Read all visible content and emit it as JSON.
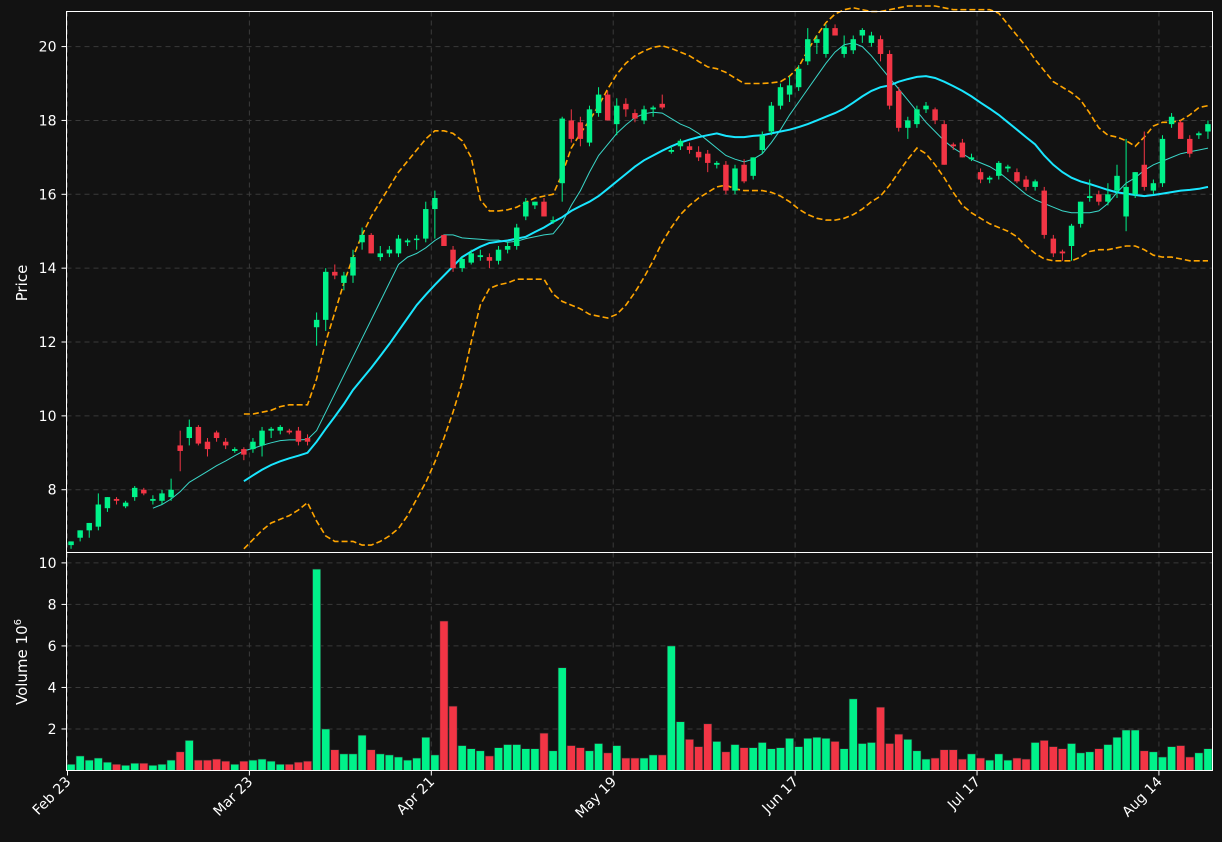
{
  "colors": {
    "background": "#121212",
    "up": "#00f28a",
    "down": "#f23545",
    "ma_fast": "#3ad6c8",
    "ma_slow": "#19e6ff",
    "bands": "#ffa500",
    "grid": "#3a3a3a",
    "axes": "#ffffff"
  },
  "chart_data": {
    "type": "candlestick",
    "price_ylabel": "Price",
    "volume_ylabel": "Volume  10^6",
    "volume_ylabel_base": "Volume  10",
    "volume_ylabel_exp": "6",
    "price_ylim": [
      6.3,
      20.95
    ],
    "price_yticks": [
      8,
      10,
      12,
      14,
      16,
      18,
      20
    ],
    "volume_ylim": [
      0,
      10.5
    ],
    "volume_yticks": [
      2,
      4,
      6,
      8,
      10
    ],
    "grid": true,
    "xticks": [
      {
        "label": "Feb 23",
        "index": 0
      },
      {
        "label": "Mar 23",
        "index": 20
      },
      {
        "label": "Apr 21",
        "index": 40
      },
      {
        "label": "May 19",
        "index": 60
      },
      {
        "label": "Jun 17",
        "index": 80
      },
      {
        "label": "Jul 17",
        "index": 100
      },
      {
        "label": "Aug 14",
        "index": 120
      }
    ],
    "ohlc": [
      [
        6.5,
        6.6,
        6.4,
        6.6
      ],
      [
        6.7,
        6.9,
        6.6,
        6.9
      ],
      [
        6.9,
        7.1,
        6.7,
        7.1
      ],
      [
        7.0,
        7.9,
        6.9,
        7.6
      ],
      [
        7.5,
        7.8,
        7.4,
        7.8
      ],
      [
        7.75,
        7.8,
        7.6,
        7.7
      ],
      [
        7.55,
        7.7,
        7.5,
        7.65
      ],
      [
        7.8,
        8.1,
        7.7,
        8.05
      ],
      [
        8.0,
        8.05,
        7.85,
        7.9
      ],
      [
        7.7,
        7.85,
        7.6,
        7.75
      ],
      [
        7.7,
        8.0,
        7.6,
        7.9
      ],
      [
        7.8,
        8.3,
        7.7,
        8.0
      ],
      [
        9.2,
        9.6,
        8.5,
        9.05
      ],
      [
        9.4,
        9.9,
        9.2,
        9.7
      ],
      [
        9.7,
        9.75,
        9.2,
        9.25
      ],
      [
        9.3,
        9.4,
        8.9,
        9.1
      ],
      [
        9.55,
        9.6,
        9.3,
        9.4
      ],
      [
        9.3,
        9.4,
        9.1,
        9.2
      ],
      [
        9.05,
        9.15,
        9.0,
        9.1
      ],
      [
        9.1,
        9.15,
        8.8,
        8.95
      ],
      [
        9.1,
        9.4,
        9.0,
        9.3
      ],
      [
        9.2,
        9.7,
        8.9,
        9.6
      ],
      [
        9.6,
        9.7,
        9.4,
        9.65
      ],
      [
        9.6,
        9.75,
        9.5,
        9.7
      ],
      [
        9.6,
        9.65,
        9.5,
        9.55
      ],
      [
        9.6,
        9.7,
        9.2,
        9.3
      ],
      [
        9.4,
        9.5,
        9.2,
        9.3
      ],
      [
        12.4,
        12.8,
        11.9,
        12.6
      ],
      [
        12.6,
        14.0,
        12.3,
        13.9
      ],
      [
        13.9,
        14.1,
        13.7,
        13.8
      ],
      [
        13.6,
        13.9,
        13.4,
        13.8
      ],
      [
        13.8,
        14.5,
        13.6,
        14.3
      ],
      [
        14.7,
        15.1,
        14.5,
        14.9
      ],
      [
        14.9,
        14.95,
        14.4,
        14.4
      ],
      [
        14.3,
        14.6,
        14.2,
        14.4
      ],
      [
        14.4,
        14.6,
        14.3,
        14.5
      ],
      [
        14.4,
        14.9,
        14.3,
        14.8
      ],
      [
        14.7,
        14.8,
        14.6,
        14.75
      ],
      [
        14.8,
        14.9,
        14.5,
        14.8
      ],
      [
        14.8,
        15.8,
        14.7,
        15.6
      ],
      [
        15.6,
        16.1,
        14.8,
        15.9
      ],
      [
        14.9,
        14.9,
        14.6,
        14.6
      ],
      [
        14.5,
        14.6,
        13.9,
        14.0
      ],
      [
        14.0,
        14.3,
        13.9,
        14.25
      ],
      [
        14.15,
        14.5,
        14.1,
        14.4
      ],
      [
        14.3,
        14.5,
        14.2,
        14.35
      ],
      [
        14.3,
        14.4,
        14.0,
        14.2
      ],
      [
        14.2,
        14.6,
        14.1,
        14.5
      ],
      [
        14.5,
        14.7,
        14.4,
        14.6
      ],
      [
        14.6,
        15.2,
        14.5,
        15.1
      ],
      [
        15.4,
        15.9,
        15.3,
        15.8
      ],
      [
        15.7,
        15.8,
        15.6,
        15.8
      ],
      [
        15.8,
        15.9,
        15.4,
        15.4
      ],
      [
        15.3,
        15.4,
        15.2,
        15.3
      ],
      [
        16.3,
        18.1,
        15.8,
        18.05
      ],
      [
        18.0,
        18.3,
        17.4,
        17.5
      ],
      [
        17.95,
        18.1,
        17.3,
        17.5
      ],
      [
        17.4,
        18.4,
        17.3,
        18.3
      ],
      [
        18.2,
        18.9,
        18.1,
        18.7
      ],
      [
        18.7,
        18.8,
        18.0,
        18.0
      ],
      [
        17.9,
        18.6,
        17.6,
        18.4
      ],
      [
        18.45,
        18.6,
        18.1,
        18.3
      ],
      [
        18.2,
        18.3,
        17.95,
        18.05
      ],
      [
        18.0,
        18.4,
        17.9,
        18.3
      ],
      [
        18.3,
        18.4,
        18.1,
        18.35
      ],
      [
        18.45,
        18.7,
        18.3,
        18.35
      ],
      [
        17.15,
        17.3,
        17.1,
        17.2
      ],
      [
        17.3,
        17.5,
        17.2,
        17.45
      ],
      [
        17.3,
        17.4,
        17.1,
        17.2
      ],
      [
        17.15,
        17.3,
        16.9,
        17.0
      ],
      [
        17.1,
        17.2,
        16.6,
        16.85
      ],
      [
        16.8,
        16.9,
        16.7,
        16.85
      ],
      [
        16.8,
        16.9,
        16.0,
        16.1
      ],
      [
        16.1,
        16.8,
        16.0,
        16.7
      ],
      [
        16.8,
        16.95,
        16.3,
        16.35
      ],
      [
        16.5,
        17.0,
        16.4,
        17.0
      ],
      [
        17.2,
        17.7,
        17.1,
        17.6
      ],
      [
        17.7,
        18.5,
        17.6,
        18.4
      ],
      [
        18.4,
        19.0,
        18.3,
        18.9
      ],
      [
        18.7,
        19.2,
        18.5,
        18.95
      ],
      [
        18.9,
        19.5,
        18.8,
        19.4
      ],
      [
        19.6,
        20.5,
        19.5,
        20.2
      ],
      [
        20.1,
        20.3,
        19.8,
        20.2
      ],
      [
        19.8,
        20.6,
        19.7,
        20.5
      ],
      [
        20.5,
        20.6,
        20.3,
        20.3
      ],
      [
        19.8,
        20.3,
        19.7,
        20.0
      ],
      [
        19.9,
        20.3,
        19.8,
        20.2
      ],
      [
        20.3,
        20.5,
        20.1,
        20.45
      ],
      [
        20.1,
        20.4,
        20.0,
        20.3
      ],
      [
        20.2,
        20.3,
        19.6,
        19.8
      ],
      [
        19.8,
        19.9,
        18.3,
        18.4
      ],
      [
        18.8,
        18.9,
        17.7,
        17.8
      ],
      [
        17.8,
        18.1,
        17.5,
        18.0
      ],
      [
        17.9,
        18.4,
        17.8,
        18.3
      ],
      [
        18.3,
        18.5,
        18.2,
        18.4
      ],
      [
        18.3,
        18.35,
        17.9,
        18.0
      ],
      [
        17.9,
        18.0,
        16.8,
        16.8
      ],
      [
        17.35,
        17.4,
        17.2,
        17.3
      ],
      [
        17.4,
        17.5,
        17.0,
        17.0
      ],
      [
        16.95,
        17.1,
        16.9,
        17.0
      ],
      [
        16.6,
        16.7,
        16.3,
        16.4
      ],
      [
        16.4,
        16.5,
        16.3,
        16.45
      ],
      [
        16.5,
        16.9,
        16.4,
        16.85
      ],
      [
        16.7,
        16.8,
        16.6,
        16.75
      ],
      [
        16.6,
        16.7,
        16.3,
        16.35
      ],
      [
        16.4,
        16.5,
        16.1,
        16.2
      ],
      [
        16.2,
        16.4,
        16.1,
        16.35
      ],
      [
        16.1,
        16.2,
        14.8,
        14.9
      ],
      [
        14.8,
        14.9,
        14.3,
        14.4
      ],
      [
        14.45,
        14.5,
        14.2,
        14.4
      ],
      [
        14.6,
        15.2,
        14.2,
        15.15
      ],
      [
        15.2,
        15.8,
        15.1,
        15.8
      ],
      [
        15.9,
        16.4,
        15.8,
        15.95
      ],
      [
        16.0,
        16.1,
        15.7,
        15.8
      ],
      [
        15.8,
        16.3,
        15.7,
        16.0
      ],
      [
        16.1,
        16.8,
        15.9,
        16.5
      ],
      [
        15.4,
        17.5,
        15.0,
        16.2
      ],
      [
        16.0,
        16.6,
        15.9,
        16.6
      ],
      [
        16.8,
        17.7,
        16.1,
        16.2
      ],
      [
        16.1,
        16.4,
        16.0,
        16.3
      ],
      [
        16.3,
        17.6,
        16.2,
        17.5
      ],
      [
        17.9,
        18.2,
        17.8,
        18.1
      ],
      [
        17.95,
        18.0,
        17.5,
        17.5
      ],
      [
        17.5,
        17.6,
        17.0,
        17.1
      ],
      [
        17.6,
        17.7,
        17.5,
        17.65
      ],
      [
        17.7,
        18.0,
        17.5,
        17.9
      ]
    ],
    "volume": [
      0.3,
      0.7,
      0.5,
      0.6,
      0.4,
      0.3,
      0.25,
      0.35,
      0.35,
      0.25,
      0.3,
      0.5,
      0.9,
      1.45,
      0.5,
      0.5,
      0.55,
      0.45,
      0.3,
      0.45,
      0.5,
      0.55,
      0.45,
      0.3,
      0.3,
      0.4,
      0.45,
      9.7,
      2.0,
      1.0,
      0.8,
      0.8,
      1.7,
      1.0,
      0.8,
      0.75,
      0.65,
      0.5,
      0.6,
      1.6,
      0.75,
      7.2,
      3.1,
      1.2,
      1.05,
      0.95,
      0.7,
      1.1,
      1.25,
      1.25,
      1.05,
      1.05,
      1.8,
      0.95,
      4.95,
      1.2,
      1.1,
      0.95,
      1.3,
      0.85,
      1.2,
      0.6,
      0.6,
      0.6,
      0.75,
      0.75,
      6.0,
      2.35,
      1.5,
      1.15,
      2.25,
      1.4,
      0.9,
      1.25,
      1.1,
      1.1,
      1.35,
      1.05,
      1.1,
      1.55,
      1.15,
      1.55,
      1.6,
      1.55,
      1.4,
      1.05,
      3.45,
      1.3,
      1.35,
      3.05,
      1.3,
      1.75,
      1.5,
      0.95,
      0.55,
      0.6,
      1.0,
      1.0,
      0.55,
      0.8,
      0.6,
      0.5,
      0.8,
      0.5,
      0.6,
      0.55,
      1.35,
      1.45,
      1.15,
      1.05,
      1.3,
      0.85,
      0.9,
      1.05,
      1.25,
      1.6,
      1.95,
      1.95,
      0.95,
      0.9,
      0.65,
      1.15,
      1.2,
      0.65,
      0.85,
      1.05
    ],
    "ma_fast": [
      null,
      null,
      null,
      null,
      null,
      null,
      null,
      null,
      null,
      7.5,
      7.6,
      7.75,
      7.95,
      8.2,
      8.35,
      8.5,
      8.65,
      8.78,
      8.92,
      9.05,
      9.12,
      9.2,
      9.27,
      9.33,
      9.35,
      9.35,
      9.36,
      9.6,
      10.1,
      10.6,
      11.1,
      11.6,
      12.1,
      12.6,
      13.1,
      13.6,
      14.1,
      14.3,
      14.4,
      14.55,
      14.75,
      14.9,
      14.9,
      14.82,
      14.8,
      14.78,
      14.76,
      14.76,
      14.7,
      14.73,
      14.8,
      14.85,
      14.9,
      14.93,
      15.23,
      15.7,
      16.1,
      16.6,
      17.05,
      17.35,
      17.65,
      17.88,
      18.08,
      18.18,
      18.22,
      18.2,
      18.05,
      17.9,
      17.8,
      17.65,
      17.45,
      17.25,
      17.05,
      16.95,
      16.88,
      16.95,
      17.1,
      17.4,
      17.75,
      18.15,
      18.5,
      18.85,
      19.2,
      19.55,
      19.85,
      20.05,
      20.1,
      20.0,
      19.75,
      19.45,
      19.15,
      18.85,
      18.55,
      18.25,
      17.95,
      17.7,
      17.45,
      17.25,
      17.1,
      16.95,
      16.85,
      16.75,
      16.6,
      16.4,
      16.2,
      16.0,
      15.85,
      15.75,
      15.65,
      15.55,
      15.5,
      15.5,
      15.5,
      15.55,
      15.75,
      16.05,
      16.3,
      16.45,
      16.65,
      16.8,
      16.9,
      17.0,
      17.1,
      17.15,
      17.2,
      17.25
    ],
    "ma_slow": [
      null,
      null,
      null,
      null,
      null,
      null,
      null,
      null,
      null,
      null,
      null,
      null,
      null,
      null,
      null,
      null,
      null,
      null,
      null,
      8.23,
      8.39,
      8.54,
      8.67,
      8.77,
      8.85,
      8.92,
      9.0,
      9.3,
      9.65,
      9.98,
      10.32,
      10.7,
      11.0,
      11.3,
      11.62,
      11.95,
      12.3,
      12.65,
      13.0,
      13.28,
      13.55,
      13.8,
      14.05,
      14.3,
      14.45,
      14.58,
      14.68,
      14.72,
      14.75,
      14.8,
      14.85,
      14.98,
      15.1,
      15.25,
      15.38,
      15.55,
      15.68,
      15.8,
      15.95,
      16.15,
      16.35,
      16.55,
      16.75,
      16.92,
      17.05,
      17.18,
      17.3,
      17.4,
      17.48,
      17.55,
      17.6,
      17.65,
      17.58,
      17.55,
      17.55,
      17.58,
      17.6,
      17.65,
      17.7,
      17.75,
      17.82,
      17.9,
      18.0,
      18.1,
      18.2,
      18.32,
      18.48,
      18.65,
      18.8,
      18.9,
      18.95,
      19.05,
      19.12,
      19.18,
      19.2,
      19.15,
      19.05,
      18.93,
      18.8,
      18.65,
      18.48,
      18.32,
      18.15,
      17.95,
      17.75,
      17.55,
      17.35,
      17.05,
      16.8,
      16.6,
      16.45,
      16.35,
      16.28,
      16.2,
      16.12,
      16.05,
      16.02,
      15.98,
      15.95,
      15.98,
      16.02,
      16.06,
      16.1,
      16.12,
      16.15,
      16.2
    ],
    "band_upper": [
      null,
      null,
      null,
      null,
      null,
      null,
      null,
      null,
      null,
      null,
      null,
      null,
      null,
      null,
      null,
      null,
      null,
      null,
      null,
      10.05,
      10.05,
      10.1,
      10.15,
      10.25,
      10.3,
      10.3,
      10.3,
      11.0,
      12.0,
      12.8,
      13.6,
      14.3,
      14.9,
      15.4,
      15.8,
      16.2,
      16.6,
      16.9,
      17.2,
      17.5,
      17.72,
      17.72,
      17.65,
      17.45,
      17.0,
      15.85,
      15.55,
      15.55,
      15.58,
      15.65,
      15.78,
      15.9,
      15.95,
      16.0,
      16.55,
      17.25,
      17.65,
      18.0,
      18.4,
      18.85,
      19.25,
      19.55,
      19.75,
      19.88,
      19.98,
      20.02,
      19.95,
      19.85,
      19.75,
      19.6,
      19.45,
      19.4,
      19.3,
      19.15,
      19.0,
      19.0,
      19.0,
      19.02,
      19.05,
      19.2,
      19.45,
      19.9,
      20.3,
      20.65,
      20.88,
      21.0,
      21.05,
      21.0,
      20.95,
      20.95,
      21.0,
      21.05,
      21.1,
      21.1,
      21.1,
      21.1,
      21.05,
      21.0,
      21.0,
      21.0,
      21.0,
      21.0,
      20.9,
      20.6,
      20.3,
      20.0,
      19.65,
      19.35,
      19.05,
      18.9,
      18.75,
      18.55,
      18.2,
      17.8,
      17.6,
      17.55,
      17.45,
      17.3,
      17.55,
      17.85,
      17.95,
      17.95,
      18.0,
      18.15,
      18.35,
      18.4
    ],
    "band_lower": [
      null,
      null,
      null,
      null,
      null,
      null,
      null,
      null,
      null,
      null,
      null,
      null,
      null,
      null,
      null,
      null,
      null,
      null,
      null,
      6.4,
      6.65,
      6.9,
      7.1,
      7.2,
      7.3,
      7.45,
      7.65,
      7.15,
      6.75,
      6.6,
      6.6,
      6.6,
      6.5,
      6.5,
      6.6,
      6.75,
      6.95,
      7.3,
      7.75,
      8.2,
      8.75,
      9.4,
      10.1,
      10.9,
      12.0,
      13.0,
      13.45,
      13.55,
      13.6,
      13.7,
      13.7,
      13.7,
      13.7,
      13.3,
      13.1,
      13.0,
      12.9,
      12.75,
      12.7,
      12.65,
      12.75,
      13.0,
      13.35,
      13.75,
      14.2,
      14.7,
      15.1,
      15.45,
      15.7,
      15.9,
      16.05,
      16.2,
      16.25,
      16.15,
      16.1,
      16.1,
      16.1,
      16.05,
      15.95,
      15.8,
      15.6,
      15.45,
      15.35,
      15.3,
      15.3,
      15.35,
      15.45,
      15.6,
      15.8,
      15.95,
      16.25,
      16.6,
      16.95,
      17.25,
      17.1,
      16.8,
      16.45,
      16.05,
      15.7,
      15.5,
      15.35,
      15.2,
      15.1,
      15.0,
      14.85,
      14.6,
      14.4,
      14.25,
      14.2,
      14.2,
      14.2,
      14.3,
      14.45,
      14.5,
      14.5,
      14.55,
      14.6,
      14.6,
      14.5,
      14.35,
      14.3,
      14.3,
      14.25,
      14.2,
      14.2,
      14.2
    ]
  }
}
